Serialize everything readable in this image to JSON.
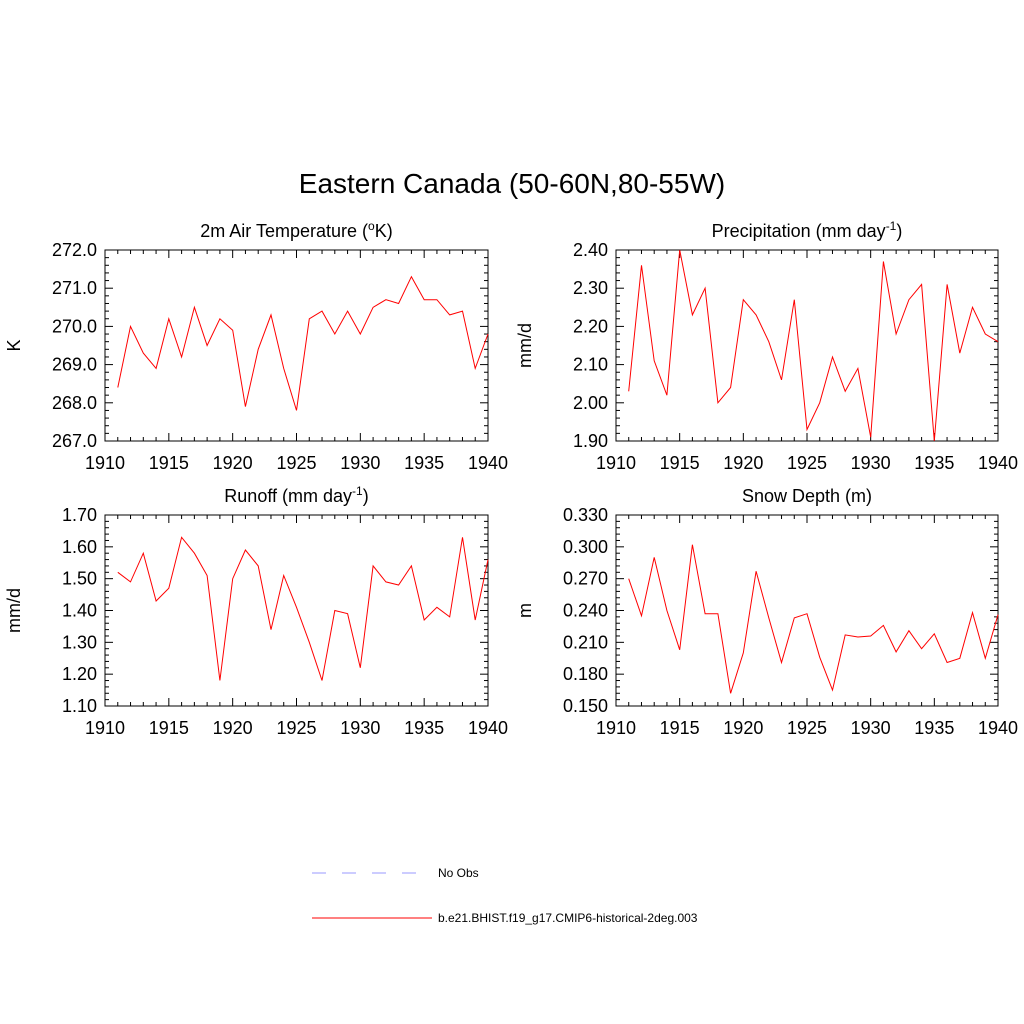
{
  "title": "Eastern Canada (50-60N,80-55W)",
  "colors": {
    "model": "#ff0000",
    "obs": "#9999ff",
    "axis": "#000000"
  },
  "legend": [
    {
      "label": "No Obs",
      "style": "dashed",
      "color": "#9999ff"
    },
    {
      "label": "b.e21.BHIST.f19_g17.CMIP6-historical-2deg.003",
      "style": "solid",
      "color": "#ff0000"
    }
  ],
  "chart_data": [
    {
      "type": "line",
      "title": "2m Air Temperature (°K)",
      "title_main": "2m Air Temperature (",
      "title_sup": "o",
      "title_tail": "K)",
      "ylabel": "K",
      "xlim": [
        1910,
        1940
      ],
      "ylim": [
        267.0,
        272.0
      ],
      "xticks": [
        "1910",
        "1915",
        "1920",
        "1925",
        "1930",
        "1935",
        "1940"
      ],
      "yticks": [
        "267.0",
        "268.0",
        "269.0",
        "270.0",
        "271.0",
        "272.0"
      ],
      "x": [
        1911,
        1912,
        1913,
        1914,
        1915,
        1916,
        1917,
        1918,
        1919,
        1920,
        1921,
        1922,
        1923,
        1924,
        1925,
        1926,
        1927,
        1928,
        1929,
        1930,
        1931,
        1932,
        1933,
        1934,
        1935,
        1936,
        1937,
        1938,
        1939,
        1940
      ],
      "series": [
        {
          "name": "b.e21.BHIST.f19_g17.CMIP6-historical-2deg.003",
          "values": [
            268.4,
            270.0,
            269.3,
            268.9,
            270.2,
            269.2,
            270.5,
            269.5,
            270.2,
            269.9,
            267.9,
            269.4,
            270.3,
            268.9,
            267.8,
            270.2,
            270.4,
            269.8,
            270.4,
            269.8,
            270.5,
            270.7,
            270.6,
            271.3,
            270.7,
            270.7,
            270.3,
            270.4,
            268.9,
            269.8
          ]
        }
      ]
    },
    {
      "type": "line",
      "title": "Precipitation (mm day-1)",
      "title_main": "Precipitation (mm day",
      "title_sup": "-1",
      "title_tail": ")",
      "ylabel": "mm/d",
      "xlim": [
        1910,
        1940
      ],
      "ylim": [
        1.9,
        2.4
      ],
      "xticks": [
        "1910",
        "1915",
        "1920",
        "1925",
        "1930",
        "1935",
        "1940"
      ],
      "yticks": [
        "1.90",
        "2.00",
        "2.10",
        "2.20",
        "2.30",
        "2.40"
      ],
      "x": [
        1911,
        1912,
        1913,
        1914,
        1915,
        1916,
        1917,
        1918,
        1919,
        1920,
        1921,
        1922,
        1923,
        1924,
        1925,
        1926,
        1927,
        1928,
        1929,
        1930,
        1931,
        1932,
        1933,
        1934,
        1935,
        1936,
        1937,
        1938,
        1939,
        1940
      ],
      "series": [
        {
          "name": "b.e21.BHIST.f19_g17.CMIP6-historical-2deg.003",
          "values": [
            2.03,
            2.36,
            2.11,
            2.02,
            2.4,
            2.23,
            2.3,
            2.0,
            2.04,
            2.27,
            2.23,
            2.16,
            2.06,
            2.27,
            1.93,
            2.0,
            2.12,
            2.03,
            2.09,
            1.91,
            2.37,
            2.18,
            2.27,
            2.31,
            1.9,
            2.31,
            2.13,
            2.25,
            2.18,
            2.16
          ]
        }
      ]
    },
    {
      "type": "line",
      "title": "Runoff (mm day-1)",
      "title_main": "Runoff (mm day",
      "title_sup": "-1",
      "title_tail": ")",
      "ylabel": "mm/d",
      "xlim": [
        1910,
        1940
      ],
      "ylim": [
        1.1,
        1.7
      ],
      "xticks": [
        "1910",
        "1915",
        "1920",
        "1925",
        "1930",
        "1935",
        "1940"
      ],
      "yticks": [
        "1.10",
        "1.20",
        "1.30",
        "1.40",
        "1.50",
        "1.60",
        "1.70"
      ],
      "x": [
        1911,
        1912,
        1913,
        1914,
        1915,
        1916,
        1917,
        1918,
        1919,
        1920,
        1921,
        1922,
        1923,
        1924,
        1925,
        1926,
        1927,
        1928,
        1929,
        1930,
        1931,
        1932,
        1933,
        1934,
        1935,
        1936,
        1937,
        1938,
        1939,
        1940
      ],
      "series": [
        {
          "name": "b.e21.BHIST.f19_g17.CMIP6-historical-2deg.003",
          "values": [
            1.52,
            1.49,
            1.58,
            1.43,
            1.47,
            1.63,
            1.58,
            1.51,
            1.18,
            1.5,
            1.59,
            1.54,
            1.34,
            1.51,
            1.41,
            1.3,
            1.18,
            1.4,
            1.39,
            1.22,
            1.54,
            1.49,
            1.48,
            1.54,
            1.37,
            1.41,
            1.38,
            1.63,
            1.37,
            1.56
          ]
        }
      ]
    },
    {
      "type": "line",
      "title": "Snow Depth (m)",
      "title_main": "Snow Depth (m)",
      "title_sup": "",
      "title_tail": "",
      "ylabel": "m",
      "xlim": [
        1910,
        1940
      ],
      "ylim": [
        0.15,
        0.33
      ],
      "xticks": [
        "1910",
        "1915",
        "1920",
        "1925",
        "1930",
        "1935",
        "1940"
      ],
      "yticks": [
        "0.150",
        "0.180",
        "0.210",
        "0.240",
        "0.270",
        "0.300",
        "0.330"
      ],
      "x": [
        1911,
        1912,
        1913,
        1914,
        1915,
        1916,
        1917,
        1918,
        1919,
        1920,
        1921,
        1922,
        1923,
        1924,
        1925,
        1926,
        1927,
        1928,
        1929,
        1930,
        1931,
        1932,
        1933,
        1934,
        1935,
        1936,
        1937,
        1938,
        1939,
        1940
      ],
      "series": [
        {
          "name": "b.e21.BHIST.f19_g17.CMIP6-historical-2deg.003",
          "values": [
            0.27,
            0.235,
            0.29,
            0.24,
            0.203,
            0.302,
            0.237,
            0.237,
            0.162,
            0.2,
            0.277,
            0.233,
            0.191,
            0.233,
            0.237,
            0.196,
            0.165,
            0.217,
            0.215,
            0.216,
            0.226,
            0.201,
            0.221,
            0.204,
            0.218,
            0.191,
            0.195,
            0.238,
            0.195,
            0.236
          ]
        }
      ]
    }
  ]
}
